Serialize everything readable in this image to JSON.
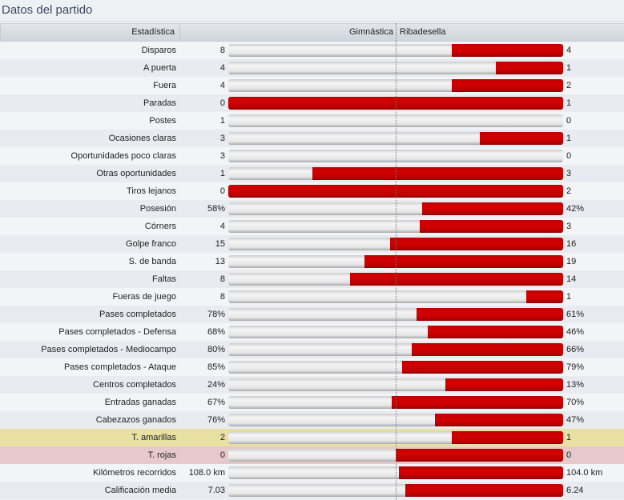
{
  "title": "Datos del partido",
  "header": {
    "stat": "Estadística",
    "home": "Gimnástica",
    "away": "Ribadesella"
  },
  "colors": {
    "bar_away": "#cc0000",
    "yellow_row": "#e9e0a4",
    "red_row": "#e6c9ca"
  },
  "rows": [
    {
      "label": "Disparos",
      "home": "8",
      "away": "4"
    },
    {
      "label": "A puerta",
      "home": "4",
      "away": "1"
    },
    {
      "label": "Fuera",
      "home": "4",
      "away": "2"
    },
    {
      "label": "Paradas",
      "home": "0",
      "away": "1"
    },
    {
      "label": "Postes",
      "home": "1",
      "away": "0"
    },
    {
      "label": "Ocasiones claras",
      "home": "3",
      "away": "1"
    },
    {
      "label": "Oportunidades poco claras",
      "home": "3",
      "away": "0"
    },
    {
      "label": "Otras oportunidades",
      "home": "1",
      "away": "3"
    },
    {
      "label": "Tiros lejanos",
      "home": "0",
      "away": "2"
    },
    {
      "label": "Posesión",
      "home": "58%",
      "away": "42%"
    },
    {
      "label": "Córners",
      "home": "4",
      "away": "3"
    },
    {
      "label": "Golpe franco",
      "home": "15",
      "away": "16"
    },
    {
      "label": "S. de banda",
      "home": "13",
      "away": "19"
    },
    {
      "label": "Faltas",
      "home": "8",
      "away": "14"
    },
    {
      "label": "Fueras de juego",
      "home": "8",
      "away": "1"
    },
    {
      "label": "Pases completados",
      "home": "78%",
      "away": "61%"
    },
    {
      "label": "Pases completados - Defensa",
      "home": "68%",
      "away": "46%"
    },
    {
      "label": "Pases completados - Mediocampo",
      "home": "80%",
      "away": "66%"
    },
    {
      "label": "Pases completados - Ataque",
      "home": "85%",
      "away": "79%"
    },
    {
      "label": "Centros completados",
      "home": "24%",
      "away": "13%"
    },
    {
      "label": "Entradas ganadas",
      "home": "67%",
      "away": "70%"
    },
    {
      "label": "Cabezazos ganados",
      "home": "76%",
      "away": "47%"
    },
    {
      "label": "T. amarillas",
      "home": "2",
      "away": "1",
      "highlight": "yellow"
    },
    {
      "label": "T. rojas",
      "home": "0",
      "away": "0",
      "highlight": "pink"
    },
    {
      "label": "Kilómetros recorridos",
      "home": "108.0 km",
      "away": "104.0 km"
    },
    {
      "label": "Calificación media",
      "home": "7.03",
      "away": "6.24"
    }
  ]
}
